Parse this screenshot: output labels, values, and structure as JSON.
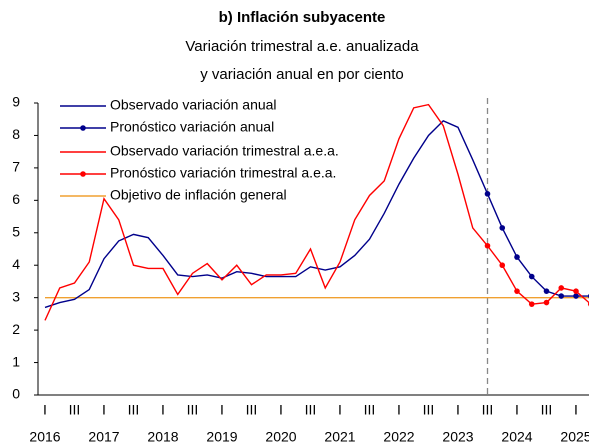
{
  "chart_data": {
    "type": "line",
    "title": "b) Inflación subyacente",
    "subtitle": [
      "Variación trimestral a.e. anualizada",
      "y variación anual en por ciento"
    ],
    "categories": [
      "I",
      null,
      "III",
      null,
      "I",
      null,
      "III",
      null,
      "I",
      null,
      "III",
      null,
      "I",
      null,
      "III",
      null,
      "I",
      null,
      "III",
      null,
      "I",
      null,
      "III",
      null,
      "I",
      null,
      "III",
      null,
      "I",
      null,
      "III",
      null,
      "I",
      null,
      "III",
      null,
      "I",
      null
    ],
    "x_groups": [
      "2016",
      "2017",
      "2018",
      "2019",
      "2020",
      "2021",
      "2022",
      "2023",
      "2024",
      "2025"
    ],
    "ylim": [
      0,
      9
    ],
    "yticks": [
      0,
      1,
      2,
      3,
      4,
      5,
      6,
      7,
      8,
      9
    ],
    "legend": "upper left",
    "series": [
      {
        "name": "Observado variación anual",
        "color": "#00008b",
        "marker": false,
        "values": [
          2.7,
          2.85,
          2.95,
          3.25,
          4.2,
          4.75,
          4.95,
          4.85,
          4.3,
          3.7,
          3.65,
          3.7,
          3.6,
          3.8,
          3.75,
          3.65,
          3.65,
          3.65,
          3.95,
          3.85,
          3.95,
          4.3,
          4.8,
          5.6,
          6.5,
          7.3,
          8.0,
          8.45,
          8.25,
          7.25,
          6.2,
          null,
          null,
          null,
          null,
          null,
          null,
          null
        ]
      },
      {
        "name": "Pronóstico variación anual",
        "color": "#00008b",
        "marker": true,
        "values": [
          null,
          null,
          null,
          null,
          null,
          null,
          null,
          null,
          null,
          null,
          null,
          null,
          null,
          null,
          null,
          null,
          null,
          null,
          null,
          null,
          null,
          null,
          null,
          null,
          null,
          null,
          null,
          null,
          null,
          null,
          6.2,
          5.15,
          4.25,
          3.65,
          3.2,
          3.05,
          3.05,
          3.05
        ]
      },
      {
        "name": "Observado variación trimestral a.e.a.",
        "color": "#ff0000",
        "marker": false,
        "values": [
          2.3,
          3.3,
          3.45,
          4.1,
          6.05,
          5.4,
          4.0,
          3.9,
          3.9,
          3.1,
          3.75,
          4.05,
          3.55,
          4.0,
          3.4,
          3.7,
          3.7,
          3.75,
          4.5,
          3.3,
          4.1,
          5.4,
          6.15,
          6.6,
          7.9,
          8.85,
          8.95,
          8.3,
          6.8,
          5.15,
          4.6,
          null,
          null,
          null,
          null,
          null,
          null,
          null
        ]
      },
      {
        "name": "Pronóstico variación trimestral a.e.a.",
        "color": "#ff0000",
        "marker": true,
        "values": [
          null,
          null,
          null,
          null,
          null,
          null,
          null,
          null,
          null,
          null,
          null,
          null,
          null,
          null,
          null,
          null,
          null,
          null,
          null,
          null,
          null,
          null,
          null,
          null,
          null,
          null,
          null,
          null,
          null,
          null,
          4.6,
          4.0,
          3.2,
          2.8,
          2.85,
          3.3,
          3.2,
          2.8
        ]
      },
      {
        "name": "Objetivo de inflación general",
        "color": "#f0a030",
        "marker": false,
        "values": [
          3,
          3,
          3,
          3,
          3,
          3,
          3,
          3,
          3,
          3,
          3,
          3,
          3,
          3,
          3,
          3,
          3,
          3,
          3,
          3,
          3,
          3,
          3,
          3,
          3,
          3,
          3,
          3,
          3,
          3,
          3,
          3,
          3,
          3,
          3,
          3,
          3,
          3
        ]
      }
    ]
  }
}
